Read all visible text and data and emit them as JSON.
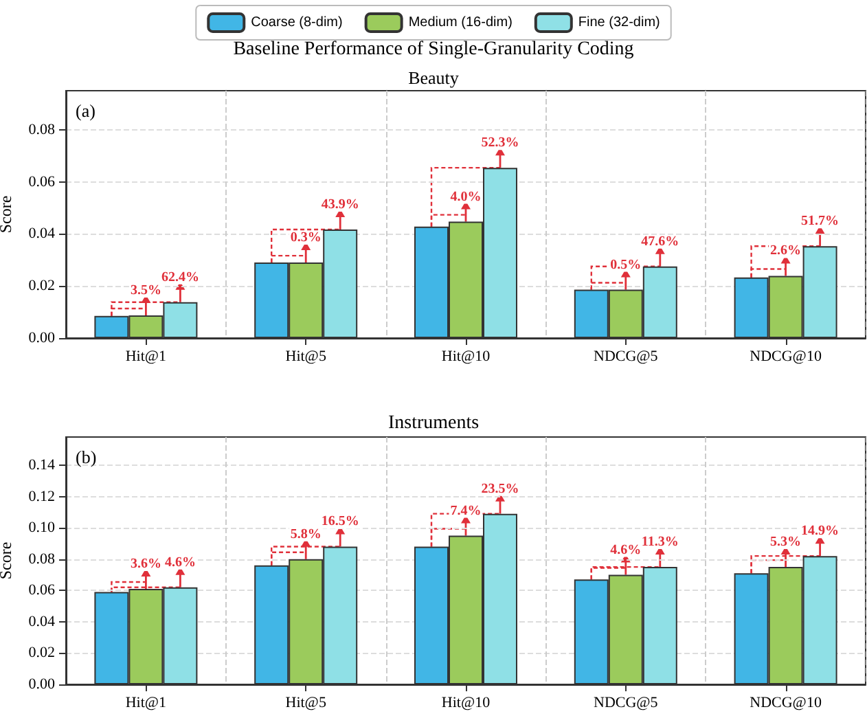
{
  "chart_data": [
    {
      "type": "bar",
      "title": "Baseline Performance of Single-Granularity Coding",
      "subtitle": "Beauty",
      "ylabel": "Score",
      "categories": [
        "Hit@1",
        "Hit@5",
        "Hit@10",
        "NDCG@5",
        "NDCG@10"
      ],
      "series": [
        {
          "name": "Coarse (8-dim)",
          "color": "#41b6e6",
          "values": [
            0.0085,
            0.029,
            0.0428,
            0.0186,
            0.0233
          ]
        },
        {
          "name": "Medium (16-dim)",
          "color": "#9bcb5c",
          "values": [
            0.0087,
            0.029,
            0.0447,
            0.0186,
            0.0239
          ]
        },
        {
          "name": "Fine (32-dim)",
          "color": "#8fe0e6",
          "values": [
            0.0138,
            0.0417,
            0.0654,
            0.0275,
            0.0353
          ]
        }
      ],
      "ylim": [
        0,
        0.095
      ],
      "yticks": [
        {
          "value": 0,
          "label": "0.00"
        },
        {
          "value": 0.02,
          "label": "0.02"
        },
        {
          "value": 0.04,
          "label": "0.04"
        },
        {
          "value": 0.06,
          "label": "0.06"
        },
        {
          "value": 0.08,
          "label": "0.08"
        }
      ],
      "grid": true,
      "legend": "top",
      "annotations": [
        "(a)",
        {
          "text": "3.5%",
          "x": "Hit@1",
          "y": 0.0087
        },
        {
          "text": "62.4%",
          "y": 0.0138
        },
        {
          "text": "0.3%",
          "x": "Hit@5",
          "y": 0.029
        },
        {
          "text": "43.9%",
          "y": 0.0417
        },
        {
          "text": "4.0%",
          "x": "Hit@10",
          "y": 0.0447
        },
        {
          "text": "52.3%",
          "y": 0.0654
        },
        {
          "text": "0.5%",
          "x": "NDCG@5",
          "y": 0.0186
        },
        {
          "text": "47.6%",
          "y": 0.0275
        },
        {
          "text": "2.6%",
          "x": "NDCG@10",
          "y": 0.0239
        },
        {
          "text": "51.7%",
          "y": 0.0353
        }
      ]
    },
    {
      "type": "bar",
      "title": "Instruments",
      "ylabel": "Score",
      "categories": [
        "Hit@1",
        "Hit@5",
        "Hit@10",
        "NDCG@5",
        "NDCG@10"
      ],
      "series": [
        {
          "color": "#41b6e6",
          "values": [
            0.059,
            0.076,
            0.088,
            0.067,
            0.071
          ]
        },
        {
          "color": "#9bcb5c",
          "values": [
            0.061,
            0.08,
            0.095,
            0.07,
            0.075
          ]
        },
        {
          "color": "#8fe0e6",
          "values": [
            0.062,
            0.088,
            0.109,
            0.075,
            0.082
          ]
        }
      ],
      "ylim": [
        0,
        0.158
      ],
      "yticks": [
        {
          "value": 0,
          "label": "0.00"
        },
        {
          "value": 0.02,
          "label": "0.02"
        },
        {
          "value": 0.04,
          "label": "0.04"
        },
        {
          "value": 0.06,
          "label": "0.06"
        },
        {
          "value": 0.08,
          "label": "0.08"
        },
        {
          "value": 0.1,
          "label": "0.10"
        },
        {
          "value": 0.12,
          "label": "0.12"
        },
        {
          "value": 0.14,
          "label": "0.14"
        }
      ],
      "grid": true,
      "annotations": [
        "(b)",
        {
          "text": "3.6%",
          "x": "Hit@1",
          "y": 0.061
        },
        {
          "text": "4.6%",
          "y": 0.062
        },
        {
          "text": "5.8%",
          "x": "Hit@5",
          "y": 0.08
        },
        {
          "text": "16.5%",
          "y": 0.088
        },
        {
          "text": "7.4%",
          "x": "Hit@10",
          "y": 0.095
        },
        {
          "text": "23.5%",
          "y": 0.109
        },
        {
          "text": "4.6%",
          "x": "NDCG@5",
          "y": 0.07
        },
        {
          "text": "11.3%",
          "y": 0.075
        },
        {
          "text": "5.3%",
          "x": "NDCG@10",
          "y": 0.075
        },
        {
          "text": "14.9%",
          "y": 0.082
        }
      ]
    }
  ]
}
